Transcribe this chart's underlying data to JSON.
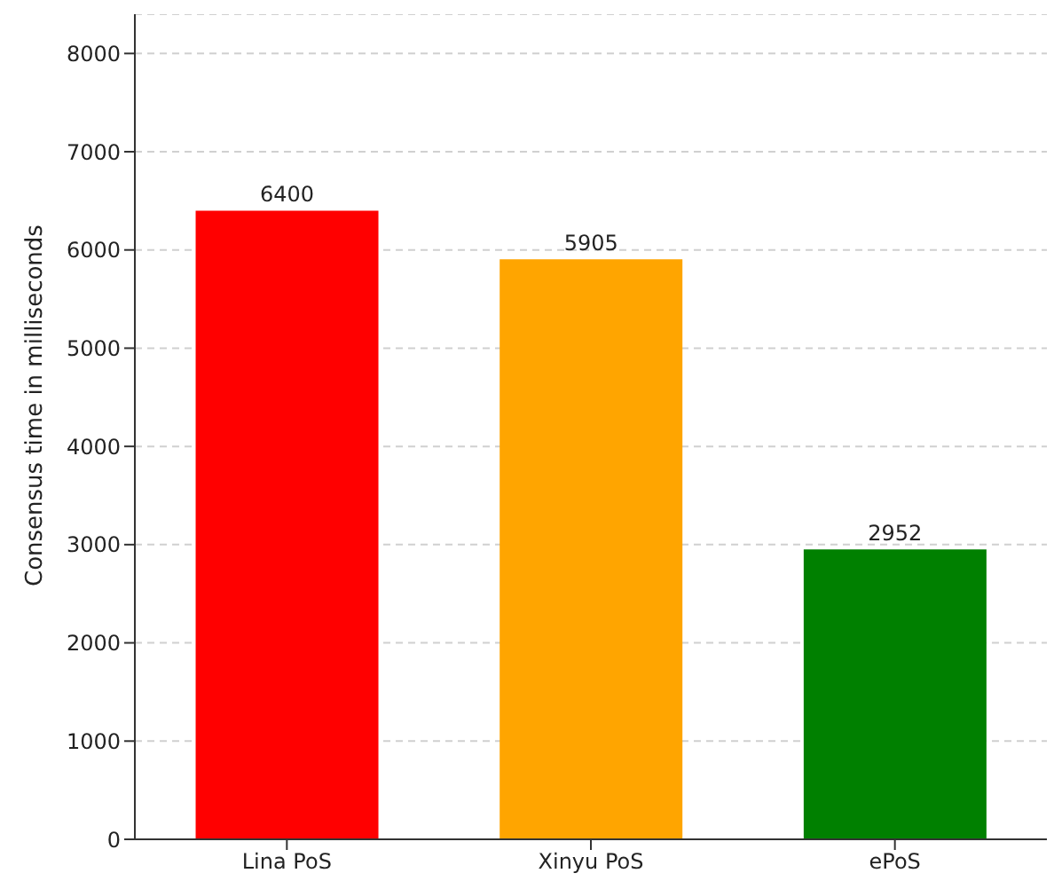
{
  "chart_data": {
    "type": "bar",
    "ylabel": "Consensus time in milliseconds",
    "categories": [
      "Lina PoS",
      "Xinyu PoS",
      "ePoS"
    ],
    "values": [
      6400,
      5905,
      2952
    ],
    "colors": [
      "#ff0000",
      "#ffa500",
      "#008000"
    ],
    "ylim": [
      0,
      8400
    ],
    "yticks": [
      0,
      1000,
      2000,
      3000,
      4000,
      5000,
      6000,
      7000,
      8000
    ],
    "grid": "y",
    "data_labels": true
  }
}
